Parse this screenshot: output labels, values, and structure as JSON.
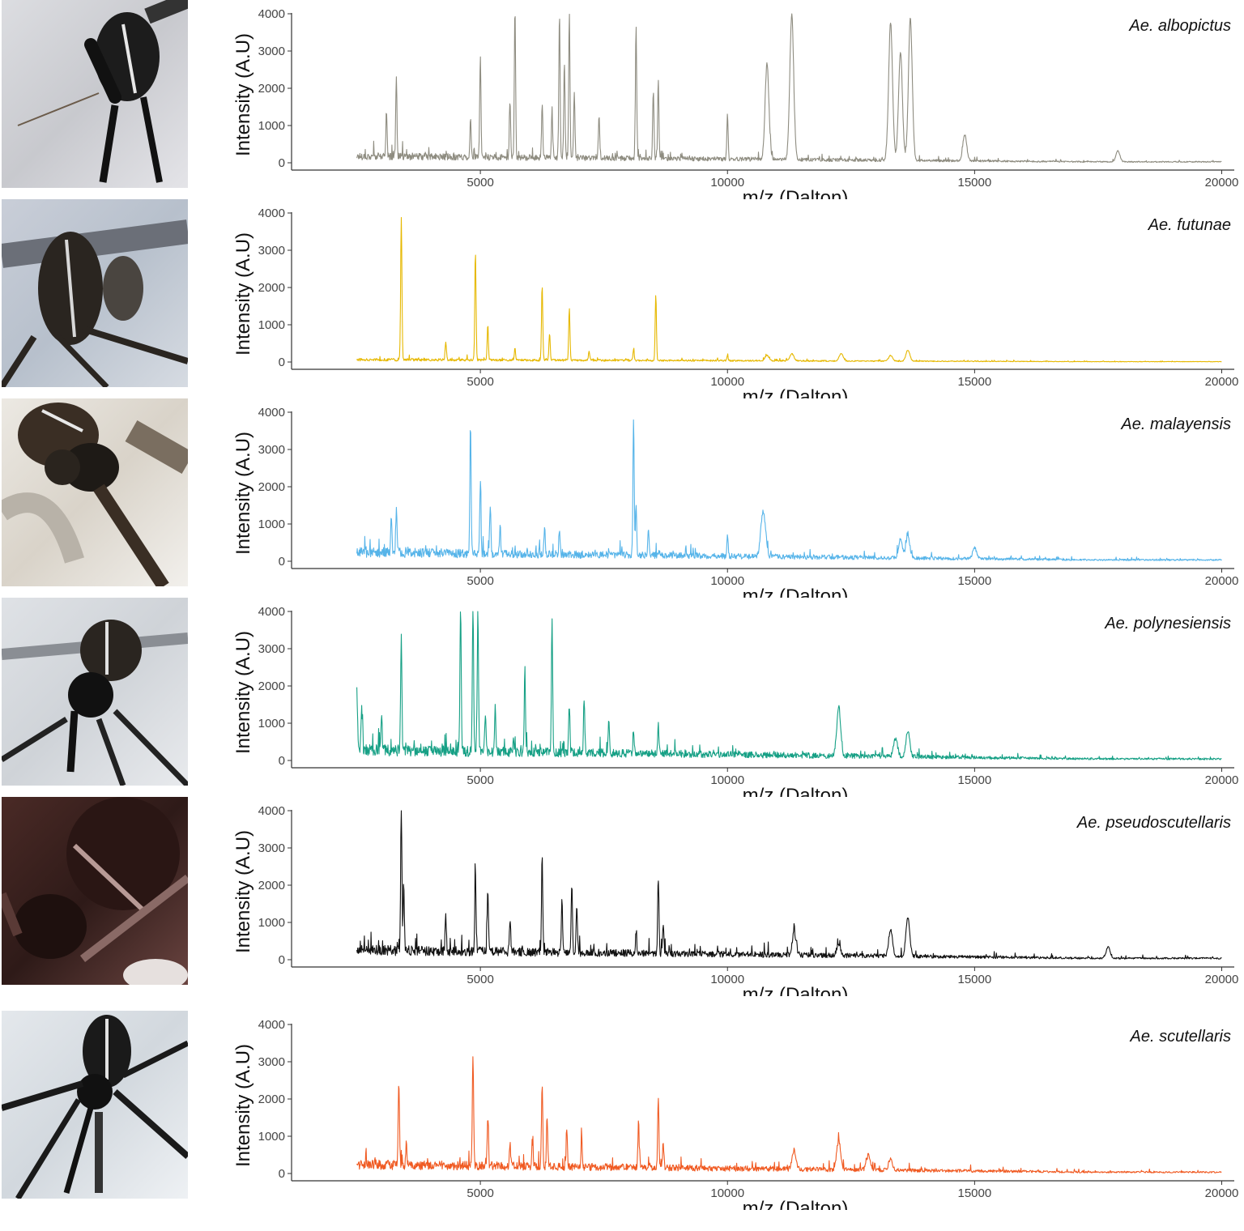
{
  "figure": {
    "x_axis_label": "m/z (Dalton)",
    "y_axis_label": "Intensity (A.U)"
  },
  "chart_data": [
    {
      "type": "line",
      "species": "Ae. albopictus",
      "color": "#8e8c80",
      "xlabel": "m/z (Dalton)",
      "ylabel": "Intensity (A.U)",
      "xlim": [
        2000,
        20000
      ],
      "ylim": [
        0,
        4000
      ],
      "xticks": [
        5000,
        10000,
        15000,
        20000
      ],
      "yticks": [
        0,
        1000,
        2000,
        3000,
        4000
      ],
      "grid": false,
      "peaks": [
        [
          3300,
          2100
        ],
        [
          3100,
          1200
        ],
        [
          4800,
          1000
        ],
        [
          5000,
          2700
        ],
        [
          5600,
          1500
        ],
        [
          5700,
          3950
        ],
        [
          6250,
          1400
        ],
        [
          6450,
          1200
        ],
        [
          6600,
          3900
        ],
        [
          6700,
          2500
        ],
        [
          6800,
          3850
        ],
        [
          6900,
          1800
        ],
        [
          7400,
          1100
        ],
        [
          8150,
          3500
        ],
        [
          8500,
          1800
        ],
        [
          8600,
          2100
        ],
        [
          10000,
          1200
        ],
        [
          10800,
          2550
        ],
        [
          11300,
          3900
        ],
        [
          13300,
          3700
        ],
        [
          13500,
          2900
        ],
        [
          13700,
          3800
        ],
        [
          14800,
          700
        ],
        [
          17900,
          300
        ]
      ],
      "baseline": 220
    },
    {
      "type": "line",
      "species": "Ae. futunae",
      "color": "#e6b800",
      "xlabel": "m/z (Dalton)",
      "ylabel": "Intensity (A.U)",
      "xlim": [
        2000,
        20000
      ],
      "ylim": [
        0,
        4000
      ],
      "xticks": [
        5000,
        10000,
        15000,
        20000
      ],
      "yticks": [
        0,
        1000,
        2000,
        3000,
        4000
      ],
      "grid": false,
      "peaks": [
        [
          3400,
          3800
        ],
        [
          4300,
          500
        ],
        [
          4900,
          2900
        ],
        [
          5150,
          900
        ],
        [
          5700,
          300
        ],
        [
          6250,
          2000
        ],
        [
          6400,
          700
        ],
        [
          6800,
          1400
        ],
        [
          7200,
          250
        ],
        [
          8100,
          300
        ],
        [
          8550,
          1750
        ],
        [
          10000,
          150
        ],
        [
          10800,
          150
        ],
        [
          11300,
          200
        ],
        [
          12300,
          200
        ],
        [
          13300,
          150
        ],
        [
          13650,
          300
        ]
      ],
      "baseline": 80
    },
    {
      "type": "line",
      "species": "Ae. malayensis",
      "color": "#56b4e9",
      "xlabel": "m/z (Dalton)",
      "ylabel": "Intensity (A.U)",
      "xlim": [
        2000,
        20000
      ],
      "ylim": [
        0,
        4000
      ],
      "xticks": [
        5000,
        10000,
        15000,
        20000
      ],
      "yticks": [
        0,
        1000,
        2000,
        3000,
        4000
      ],
      "grid": false,
      "peaks": [
        [
          3200,
          1000
        ],
        [
          3300,
          1150
        ],
        [
          4800,
          3500
        ],
        [
          5000,
          1900
        ],
        [
          5200,
          1300
        ],
        [
          5400,
          700
        ],
        [
          6300,
          800
        ],
        [
          6600,
          700
        ],
        [
          8100,
          3650
        ],
        [
          8150,
          1400
        ],
        [
          8400,
          700
        ],
        [
          10000,
          600
        ],
        [
          10700,
          800
        ],
        [
          10750,
          650
        ],
        [
          13500,
          500
        ],
        [
          13650,
          600
        ],
        [
          15000,
          300
        ]
      ],
      "baseline": 300
    },
    {
      "type": "line",
      "species": "Ae. polynesiensis",
      "color": "#16a085",
      "xlabel": "m/z (Dalton)",
      "ylabel": "Intensity (A.U)",
      "xlim": [
        2000,
        20000
      ],
      "ylim": [
        0,
        4000
      ],
      "xticks": [
        5000,
        10000,
        15000,
        20000
      ],
      "yticks": [
        0,
        1000,
        2000,
        3000,
        4000
      ],
      "grid": false,
      "peaks": [
        [
          2500,
          1700
        ],
        [
          2600,
          1200
        ],
        [
          3000,
          1000
        ],
        [
          3400,
          3150
        ],
        [
          4600,
          3900
        ],
        [
          4850,
          3950
        ],
        [
          4950,
          3800
        ],
        [
          5100,
          1000
        ],
        [
          5300,
          1200
        ],
        [
          5900,
          2200
        ],
        [
          6450,
          3500
        ],
        [
          6800,
          1300
        ],
        [
          7100,
          1300
        ],
        [
          7600,
          900
        ],
        [
          8100,
          500
        ],
        [
          8600,
          800
        ],
        [
          12250,
          1300
        ],
        [
          13400,
          500
        ],
        [
          13650,
          700
        ]
      ],
      "baseline": 350
    },
    {
      "type": "line",
      "species": "Ae. pseudoscutellaris",
      "color": "#111111",
      "xlabel": "m/z (Dalton)",
      "ylabel": "Intensity (A.U)",
      "xlim": [
        2000,
        20000
      ],
      "ylim": [
        0,
        4000
      ],
      "xticks": [
        5000,
        10000,
        15000,
        20000
      ],
      "yticks": [
        0,
        1000,
        2000,
        3000,
        4000
      ],
      "grid": false,
      "peaks": [
        [
          3400,
          3900
        ],
        [
          3450,
          1800
        ],
        [
          4300,
          1000
        ],
        [
          4900,
          2150
        ],
        [
          5150,
          1750
        ],
        [
          5600,
          900
        ],
        [
          6250,
          2600
        ],
        [
          6650,
          1350
        ],
        [
          6850,
          1850
        ],
        [
          6950,
          1200
        ],
        [
          8150,
          600
        ],
        [
          8600,
          2050
        ],
        [
          8700,
          800
        ],
        [
          11350,
          600
        ],
        [
          12250,
          300
        ],
        [
          13300,
          700
        ],
        [
          13650,
          1050
        ],
        [
          17700,
          300
        ]
      ],
      "baseline": 320
    },
    {
      "type": "line",
      "species": "Ae. scutellaris",
      "color": "#f05a22",
      "xlabel": "m/z (Dalton)",
      "ylabel": "Intensity (A.U)",
      "xlim": [
        2000,
        20000
      ],
      "ylim": [
        0,
        4000
      ],
      "xticks": [
        5000,
        10000,
        15000,
        20000
      ],
      "yticks": [
        0,
        1000,
        2000,
        3000,
        4000
      ],
      "grid": false,
      "peaks": [
        [
          3350,
          2250
        ],
        [
          3500,
          600
        ],
        [
          4850,
          3000
        ],
        [
          5150,
          1200
        ],
        [
          5600,
          600
        ],
        [
          6050,
          700
        ],
        [
          6250,
          2300
        ],
        [
          6350,
          1400
        ],
        [
          6750,
          950
        ],
        [
          7050,
          800
        ],
        [
          8200,
          1200
        ],
        [
          8600,
          1900
        ],
        [
          8700,
          700
        ],
        [
          11350,
          500
        ],
        [
          12250,
          800
        ],
        [
          12850,
          400
        ],
        [
          13300,
          300
        ]
      ],
      "baseline": 300
    }
  ]
}
